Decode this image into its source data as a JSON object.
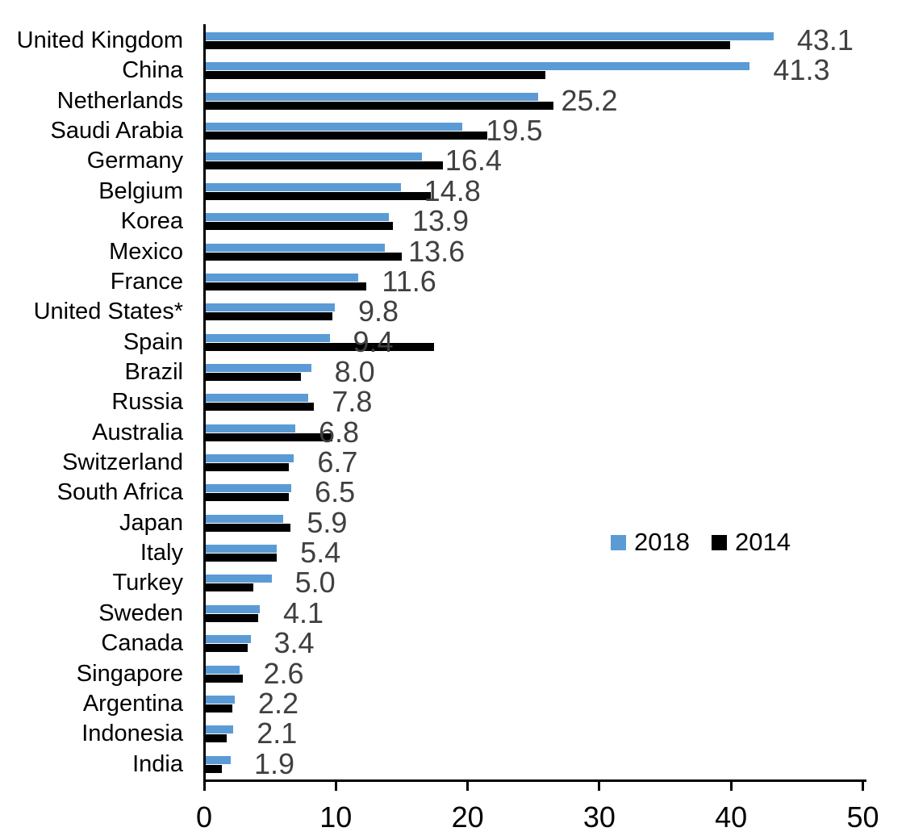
{
  "chart_data": {
    "type": "bar",
    "orientation": "horizontal",
    "title": "",
    "xlabel": "",
    "ylabel": "",
    "xlim": [
      0,
      50
    ],
    "x_tick_labels": [
      "0",
      "10",
      "20",
      "30",
      "40",
      "50"
    ],
    "x_tick_values": [
      0,
      10,
      20,
      30,
      40,
      50
    ],
    "grid": false,
    "legend_position": "middle-right",
    "categories": [
      "United Kingdom",
      "China",
      "Netherlands",
      "Saudi Arabia",
      "Germany",
      "Belgium",
      "Korea",
      "Mexico",
      "France",
      "United States*",
      "Spain",
      "Brazil",
      "Russia",
      "Australia",
      "Switzerland",
      "South Africa",
      "Japan",
      "Italy",
      "Turkey",
      "Sweden",
      "Canada",
      "Singapore",
      "Argentina",
      "Indonesia",
      "India"
    ],
    "series": [
      {
        "name": "2018",
        "color": "#5B9BD5",
        "values": [
          43.1,
          41.3,
          25.2,
          19.5,
          16.4,
          14.8,
          13.9,
          13.6,
          11.6,
          9.8,
          9.4,
          8.0,
          7.8,
          6.8,
          6.7,
          6.5,
          5.9,
          5.4,
          5.0,
          4.1,
          3.4,
          2.6,
          2.2,
          2.1,
          1.9
        ],
        "labels": [
          "43.1",
          "41.3",
          "25.2",
          "19.5",
          "16.4",
          "14.8",
          "13.9",
          "13.6",
          "11.6",
          "9.8",
          "9.4",
          "8.0",
          "7.8",
          "6.8",
          "6.7",
          "6.5",
          "5.9",
          "5.4",
          "5.0",
          "4.1",
          "3.4",
          "2.6",
          "2.2",
          "2.1",
          "1.9"
        ],
        "labels_shown": true,
        "label_color": "#404040"
      },
      {
        "name": "2014",
        "color": "#000000",
        "values": [
          39.8,
          25.8,
          26.4,
          21.4,
          18.0,
          17.1,
          14.2,
          14.9,
          12.2,
          9.6,
          17.3,
          7.2,
          8.2,
          9.6,
          6.3,
          6.3,
          6.4,
          5.4,
          3.6,
          4.0,
          3.2,
          2.8,
          2.0,
          1.6,
          1.2
        ],
        "labels_shown": false,
        "values_estimated_from_bar_lengths": true
      }
    ],
    "axis_color": "#000000"
  }
}
